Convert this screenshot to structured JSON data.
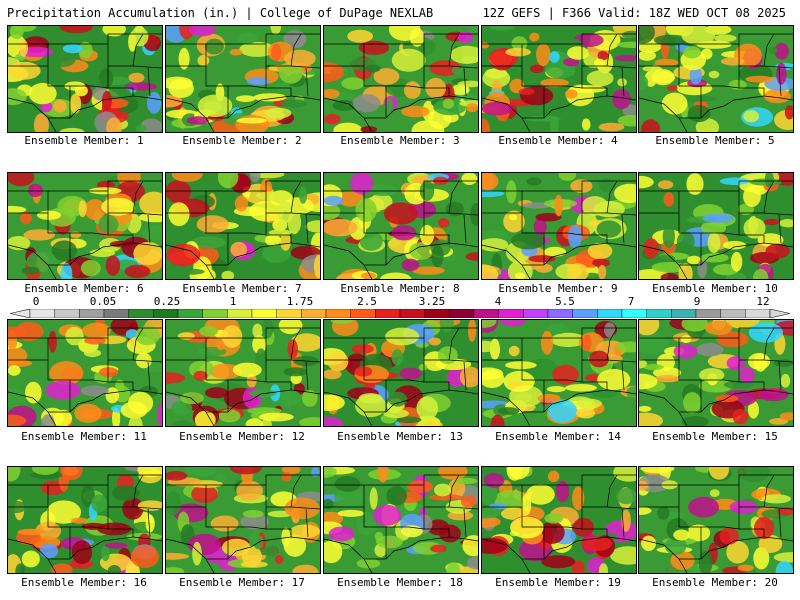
{
  "header": {
    "left_title": "Precipitation Accumulation (in.) | College of DuPage NEXLAB",
    "right_title": "12Z GEFS | F366 Valid: 18Z WED OCT 08 2025"
  },
  "members": [
    {
      "label": "Ensemble Member: 1"
    },
    {
      "label": "Ensemble Member: 2"
    },
    {
      "label": "Ensemble Member: 3"
    },
    {
      "label": "Ensemble Member: 4"
    },
    {
      "label": "Ensemble Member: 5"
    },
    {
      "label": "Ensemble Member: 6"
    },
    {
      "label": "Ensemble Member: 7"
    },
    {
      "label": "Ensemble Member: 8"
    },
    {
      "label": "Ensemble Member: 9"
    },
    {
      "label": "Ensemble Member: 10"
    },
    {
      "label": "Ensemble Member: 11"
    },
    {
      "label": "Ensemble Member: 12"
    },
    {
      "label": "Ensemble Member: 13"
    },
    {
      "label": "Ensemble Member: 14"
    },
    {
      "label": "Ensemble Member: 15"
    },
    {
      "label": "Ensemble Member: 16"
    },
    {
      "label": "Ensemble Member: 17"
    },
    {
      "label": "Ensemble Member: 18"
    },
    {
      "label": "Ensemble Member: 19"
    },
    {
      "label": "Ensemble Member: 20"
    }
  ],
  "color_scale": {
    "tick_labels": [
      "0",
      "0.05",
      "0.25",
      "1",
      "1.75",
      "2.5",
      "3.25",
      "4",
      "5.5",
      "7",
      "9",
      "12"
    ],
    "colors": [
      "#e6e6e6",
      "#c8c8c8",
      "#a0a0a0",
      "#7a7a7a",
      "#2e8b2e",
      "#1f7a1f",
      "#3aa53a",
      "#7fd12f",
      "#d7f03a",
      "#ffff33",
      "#ffd633",
      "#ffad33",
      "#ff8c1a",
      "#ff5a1a",
      "#e82020",
      "#c8101e",
      "#a00018",
      "#8a0030",
      "#c0108c",
      "#e020d0",
      "#c040ff",
      "#8c6cff",
      "#5aa0ff",
      "#33d6ff",
      "#33ffff",
      "#30d0c8",
      "#40b0b0",
      "#9a9a9a",
      "#bcbcbc",
      "#d8d8d8"
    ]
  }
}
